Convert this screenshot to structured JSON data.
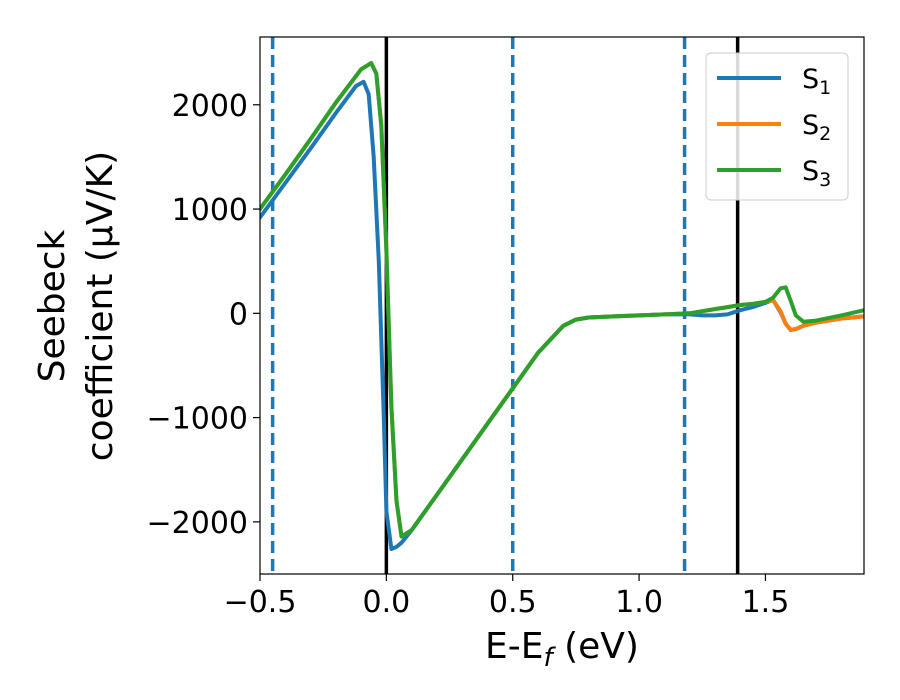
{
  "chart_data": {
    "type": "line",
    "xlabel_main": "E-E",
    "xlabel_sub": "f",
    "xlabel_unit": " (eV)",
    "ylabel_line1": "Seebeck",
    "ylabel_line2": "coefficient  (μV/K)",
    "xlim": [
      -0.5,
      1.89
    ],
    "ylim": [
      -2500,
      2650
    ],
    "x_ticks": [
      -0.5,
      0.0,
      0.5,
      1.0,
      1.5
    ],
    "x_tick_labels": [
      "−0.5",
      "0.0",
      "0.5",
      "1.0",
      "1.5"
    ],
    "y_ticks": [
      -2000,
      -1000,
      0,
      1000,
      2000
    ],
    "y_tick_labels": [
      "−2000",
      "−1000",
      "0",
      "1000",
      "2000"
    ],
    "grid": false,
    "legend_position": "top-right",
    "vlines_dashed": [
      -0.45,
      0.5,
      1.18
    ],
    "vlines_solid": [
      0.0,
      1.39
    ],
    "series": [
      {
        "name": "S",
        "sub": "1",
        "color": "#1f77b4",
        "x": [
          -0.5,
          -0.4,
          -0.3,
          -0.2,
          -0.12,
          -0.09,
          -0.07,
          -0.05,
          -0.03,
          -0.01,
          0.0,
          0.02,
          0.04,
          0.06,
          0.1,
          0.2,
          0.3,
          0.4,
          0.5,
          0.6,
          0.7,
          0.75,
          0.8,
          0.9,
          1.0,
          1.1,
          1.2,
          1.25,
          1.3,
          1.35,
          1.4,
          1.45,
          1.5,
          1.53,
          1.56,
          1.58,
          1.6,
          1.62,
          1.65,
          1.7,
          1.8,
          1.89
        ],
        "y": [
          920,
          1250,
          1580,
          1920,
          2180,
          2220,
          2100,
          1500,
          500,
          -1000,
          -1900,
          -2260,
          -2240,
          -2200,
          -2080,
          -1740,
          -1400,
          -1060,
          -720,
          -380,
          -120,
          -60,
          -40,
          -30,
          -20,
          -10,
          -10,
          -20,
          -20,
          -10,
          30,
          60,
          100,
          130,
          10,
          -100,
          -160,
          -150,
          -120,
          -90,
          -50,
          -30
        ]
      },
      {
        "name": "S",
        "sub": "2",
        "color": "#ff7f0e",
        "x": [
          -0.5,
          -0.4,
          -0.3,
          -0.2,
          -0.1,
          -0.06,
          -0.04,
          -0.02,
          0.0,
          0.02,
          0.04,
          0.06,
          0.1,
          0.2,
          0.3,
          0.4,
          0.5,
          0.6,
          0.7,
          0.75,
          0.8,
          0.9,
          1.0,
          1.1,
          1.2,
          1.25,
          1.3,
          1.35,
          1.4,
          1.45,
          1.5,
          1.53,
          1.56,
          1.58,
          1.6,
          1.62,
          1.65,
          1.7,
          1.8,
          1.89
        ],
        "y": [
          1000,
          1330,
          1670,
          2020,
          2340,
          2400,
          2300,
          1800,
          600,
          -900,
          -1800,
          -2140,
          -2080,
          -1740,
          -1400,
          -1060,
          -720,
          -380,
          -120,
          -60,
          -40,
          -30,
          -20,
          -10,
          0,
          20,
          40,
          60,
          80,
          90,
          110,
          130,
          20,
          -100,
          -160,
          -150,
          -120,
          -90,
          -50,
          -30
        ]
      },
      {
        "name": "S",
        "sub": "3",
        "color": "#2ca02c",
        "x": [
          -0.5,
          -0.4,
          -0.3,
          -0.2,
          -0.1,
          -0.06,
          -0.04,
          -0.02,
          0.0,
          0.02,
          0.04,
          0.06,
          0.1,
          0.2,
          0.3,
          0.4,
          0.5,
          0.6,
          0.7,
          0.75,
          0.8,
          0.9,
          1.0,
          1.1,
          1.2,
          1.25,
          1.3,
          1.35,
          1.4,
          1.45,
          1.5,
          1.53,
          1.56,
          1.58,
          1.6,
          1.62,
          1.65,
          1.7,
          1.8,
          1.89
        ],
        "y": [
          1000,
          1330,
          1670,
          2020,
          2340,
          2400,
          2300,
          1800,
          600,
          -900,
          -1800,
          -2140,
          -2080,
          -1740,
          -1400,
          -1060,
          -720,
          -380,
          -120,
          -60,
          -40,
          -30,
          -20,
          -10,
          0,
          20,
          40,
          60,
          80,
          90,
          110,
          150,
          240,
          250,
          120,
          -20,
          -80,
          -70,
          -20,
          30
        ]
      }
    ]
  }
}
